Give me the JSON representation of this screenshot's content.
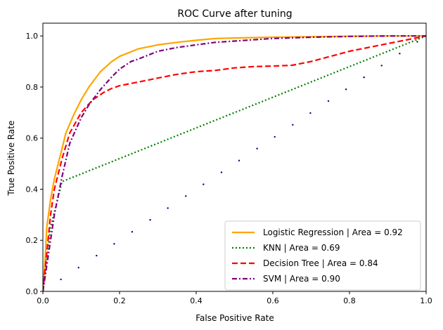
{
  "chart_data": {
    "type": "line",
    "title": "ROC Curve after tuning",
    "xlabel": "False Positive Rate",
    "ylabel": "True Positive Rate",
    "xlim": [
      0,
      1
    ],
    "ylim": [
      0,
      1.05
    ],
    "xticks": [
      "0.0",
      "0.2",
      "0.4",
      "0.6",
      "0.8",
      "1.0"
    ],
    "yticks": [
      "0.0",
      "0.2",
      "0.4",
      "0.6",
      "0.8",
      "1.0"
    ],
    "grid": false,
    "legend_position": "lower-right",
    "series": [
      {
        "name": "Logistic Regression | Area = 0.92",
        "color": "#ffa500",
        "style": "solid",
        "x": [
          0,
          0.005,
          0.01,
          0.02,
          0.03,
          0.04,
          0.05,
          0.06,
          0.08,
          0.1,
          0.12,
          0.15,
          0.18,
          0.2,
          0.25,
          0.3,
          0.35,
          0.4,
          0.45,
          0.5,
          0.6,
          0.7,
          0.8,
          0.9,
          1.0
        ],
        "y": [
          0,
          0.1,
          0.25,
          0.36,
          0.44,
          0.5,
          0.56,
          0.62,
          0.69,
          0.75,
          0.8,
          0.86,
          0.9,
          0.92,
          0.95,
          0.965,
          0.975,
          0.983,
          0.99,
          0.992,
          0.995,
          0.997,
          0.999,
          1.0,
          1.0
        ]
      },
      {
        "name": "KNN | Area = 0.69",
        "color": "#008000",
        "style": "dotted",
        "x": [
          0,
          0.02,
          0.05,
          1.0
        ],
        "y": [
          0,
          0.25,
          0.43,
          1.0
        ]
      },
      {
        "name": "Decision Tree | Area = 0.84",
        "color": "#ff0000",
        "style": "dashed",
        "x": [
          0,
          0.01,
          0.02,
          0.03,
          0.05,
          0.07,
          0.1,
          0.13,
          0.16,
          0.18,
          0.2,
          0.25,
          0.3,
          0.35,
          0.4,
          0.45,
          0.5,
          0.55,
          0.6,
          0.65,
          0.7,
          0.75,
          0.8,
          0.9,
          1.0
        ],
        "y": [
          0,
          0.15,
          0.3,
          0.4,
          0.52,
          0.62,
          0.7,
          0.75,
          0.78,
          0.795,
          0.805,
          0.82,
          0.835,
          0.85,
          0.86,
          0.865,
          0.875,
          0.88,
          0.882,
          0.885,
          0.9,
          0.92,
          0.94,
          0.97,
          1.0
        ]
      },
      {
        "name": "SVM | Area = 0.90",
        "color": "#800080",
        "style": "dashdot",
        "x": [
          0,
          0.01,
          0.02,
          0.03,
          0.05,
          0.07,
          0.1,
          0.12,
          0.15,
          0.18,
          0.2,
          0.23,
          0.25,
          0.3,
          0.35,
          0.4,
          0.45,
          0.5,
          0.6,
          0.7,
          0.8,
          0.9,
          1.0
        ],
        "y": [
          0,
          0.1,
          0.2,
          0.3,
          0.45,
          0.58,
          0.68,
          0.73,
          0.79,
          0.84,
          0.87,
          0.9,
          0.91,
          0.94,
          0.955,
          0.965,
          0.975,
          0.98,
          0.99,
          0.995,
          0.998,
          1.0,
          1.0
        ]
      },
      {
        "name": "",
        "color": "#00008b",
        "style": "markers",
        "x": [
          0,
          0.047,
          0.093,
          0.14,
          0.186,
          0.233,
          0.28,
          0.326,
          0.373,
          0.419,
          0.466,
          0.512,
          0.559,
          0.605,
          0.652,
          0.698,
          0.745,
          0.791,
          0.838,
          0.884,
          0.931,
          0.977
        ],
        "y": [
          0,
          0.047,
          0.093,
          0.14,
          0.186,
          0.233,
          0.28,
          0.326,
          0.373,
          0.419,
          0.466,
          0.512,
          0.559,
          0.605,
          0.652,
          0.698,
          0.745,
          0.791,
          0.838,
          0.884,
          0.931,
          0.977
        ]
      }
    ]
  }
}
